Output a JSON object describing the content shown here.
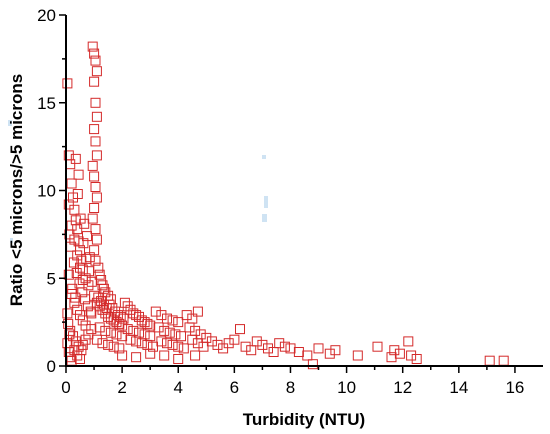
{
  "chart_data": {
    "type": "scatter",
    "title": "",
    "xlabel": "Turbidity (NTU)",
    "ylabel": "Ratio <5 microns/>5 microns",
    "xlim": [
      0,
      17
    ],
    "ylim": [
      0,
      20
    ],
    "x_ticks": [
      0,
      2,
      4,
      6,
      8,
      10,
      12,
      14,
      16
    ],
    "y_ticks": [
      0,
      5,
      10,
      15,
      20
    ],
    "x_tick_labels": [
      "0",
      "2",
      "4",
      "6",
      "8",
      "10",
      "12",
      "14",
      "16"
    ],
    "y_tick_labels": [
      "0",
      "5",
      "10",
      "15",
      "20"
    ],
    "grid": false,
    "marker": "open-square",
    "colors": {
      "marker": "#d42a2a",
      "axis": "#000000"
    },
    "series": [
      {
        "points": [
          [
            0.05,
            16.1
          ],
          [
            0.1,
            12.0
          ],
          [
            0.15,
            11.5
          ],
          [
            0.2,
            10.4
          ],
          [
            0.25,
            9.6
          ],
          [
            0.3,
            8.9
          ],
          [
            0.35,
            8.3
          ],
          [
            0.4,
            7.8
          ],
          [
            0.45,
            7.1
          ],
          [
            0.5,
            6.6
          ],
          [
            0.55,
            6.0
          ],
          [
            0.6,
            5.5
          ],
          [
            0.7,
            5.0
          ],
          [
            0.8,
            4.6
          ],
          [
            0.1,
            9.2
          ],
          [
            0.2,
            8.0
          ],
          [
            0.3,
            7.2
          ],
          [
            0.4,
            6.3
          ],
          [
            0.5,
            5.6
          ],
          [
            0.6,
            4.9
          ],
          [
            0.2,
            4.1
          ],
          [
            0.3,
            3.6
          ],
          [
            0.4,
            3.2
          ],
          [
            0.5,
            2.9
          ],
          [
            0.6,
            2.6
          ],
          [
            0.7,
            2.3
          ],
          [
            0.15,
            2.0
          ],
          [
            0.25,
            1.7
          ],
          [
            0.35,
            1.4
          ],
          [
            0.45,
            1.1
          ],
          [
            0.55,
            0.9
          ],
          [
            0.1,
            5.2
          ],
          [
            0.22,
            4.4
          ],
          [
            0.33,
            3.9
          ],
          [
            0.18,
            6.8
          ],
          [
            0.28,
            5.9
          ],
          [
            0.38,
            5.3
          ],
          [
            0.48,
            4.7
          ],
          [
            0.58,
            4.2
          ],
          [
            0.68,
            3.8
          ],
          [
            0.78,
            3.4
          ],
          [
            0.88,
            3.1
          ],
          [
            0.12,
            7.5
          ],
          [
            0.42,
            9.8
          ],
          [
            0.52,
            8.4
          ],
          [
            0.62,
            7.0
          ],
          [
            0.72,
            6.1
          ],
          [
            0.82,
            5.4
          ],
          [
            0.92,
            4.8
          ],
          [
            0.95,
            18.2
          ],
          [
            1.0,
            17.8
          ],
          [
            1.05,
            17.4
          ],
          [
            1.1,
            16.8
          ],
          [
            1.0,
            16.2
          ],
          [
            1.05,
            15.0
          ],
          [
            1.1,
            14.2
          ],
          [
            1.0,
            13.5
          ],
          [
            1.05,
            12.8
          ],
          [
            1.1,
            12.0
          ],
          [
            0.95,
            11.4
          ],
          [
            1.0,
            10.8
          ],
          [
            1.05,
            10.2
          ],
          [
            1.1,
            9.6
          ],
          [
            1.0,
            9.0
          ],
          [
            0.95,
            8.4
          ],
          [
            1.05,
            7.8
          ],
          [
            1.1,
            7.2
          ],
          [
            1.0,
            6.6
          ],
          [
            1.05,
            6.0
          ],
          [
            1.15,
            5.6
          ],
          [
            1.2,
            5.2
          ],
          [
            1.25,
            4.9
          ],
          [
            1.3,
            4.6
          ],
          [
            1.35,
            4.4
          ],
          [
            1.4,
            4.2
          ],
          [
            1.5,
            4.0
          ],
          [
            1.6,
            3.8
          ],
          [
            1.0,
            4.0
          ],
          [
            1.1,
            3.6
          ],
          [
            1.2,
            3.4
          ],
          [
            0.9,
            3.0
          ],
          [
            1.3,
            3.2
          ],
          [
            1.4,
            3.0
          ],
          [
            1.5,
            2.8
          ],
          [
            1.6,
            2.7
          ],
          [
            1.7,
            2.6
          ],
          [
            1.8,
            2.5
          ],
          [
            1.9,
            2.4
          ],
          [
            2.0,
            2.3
          ],
          [
            1.2,
            2.2
          ],
          [
            1.4,
            2.0
          ],
          [
            1.6,
            1.9
          ],
          [
            1.8,
            1.8
          ],
          [
            2.0,
            1.7
          ],
          [
            1.1,
            1.5
          ],
          [
            1.3,
            1.3
          ],
          [
            1.5,
            1.2
          ],
          [
            1.7,
            1.1
          ],
          [
            1.9,
            1.0
          ],
          [
            2.1,
            3.6
          ],
          [
            2.2,
            3.4
          ],
          [
            2.3,
            3.2
          ],
          [
            2.4,
            3.0
          ],
          [
            2.5,
            2.9
          ],
          [
            2.6,
            2.8
          ],
          [
            2.7,
            2.6
          ],
          [
            2.8,
            2.5
          ],
          [
            2.9,
            2.4
          ],
          [
            3.0,
            2.3
          ],
          [
            2.2,
            2.1
          ],
          [
            2.4,
            2.0
          ],
          [
            2.6,
            1.9
          ],
          [
            2.8,
            1.8
          ],
          [
            3.0,
            1.7
          ],
          [
            2.3,
            1.5
          ],
          [
            2.5,
            1.4
          ],
          [
            2.7,
            1.3
          ],
          [
            2.9,
            1.2
          ],
          [
            3.1,
            1.1
          ],
          [
            3.2,
            3.1
          ],
          [
            3.4,
            2.9
          ],
          [
            3.6,
            2.7
          ],
          [
            3.8,
            2.6
          ],
          [
            4.0,
            2.5
          ],
          [
            3.3,
            2.2
          ],
          [
            3.5,
            2.0
          ],
          [
            3.7,
            1.9
          ],
          [
            3.9,
            1.8
          ],
          [
            4.1,
            1.7
          ],
          [
            3.4,
            1.4
          ],
          [
            3.6,
            1.3
          ],
          [
            3.8,
            1.2
          ],
          [
            4.0,
            1.1
          ],
          [
            4.2,
            1.0
          ],
          [
            4.3,
            2.9
          ],
          [
            4.5,
            2.7
          ],
          [
            4.7,
            3.1
          ],
          [
            4.4,
            2.2
          ],
          [
            4.6,
            2.0
          ],
          [
            4.8,
            1.8
          ],
          [
            4.5,
            1.5
          ],
          [
            4.7,
            1.3
          ],
          [
            4.9,
            1.1
          ],
          [
            2.0,
            0.6
          ],
          [
            2.5,
            0.5
          ],
          [
            3.0,
            0.7
          ],
          [
            3.5,
            0.6
          ],
          [
            4.0,
            0.4
          ],
          [
            4.6,
            0.6
          ],
          [
            5.0,
            1.6
          ],
          [
            5.2,
            1.4
          ],
          [
            5.4,
            1.2
          ],
          [
            5.6,
            1.0
          ],
          [
            5.8,
            1.3
          ],
          [
            6.0,
            1.5
          ],
          [
            6.2,
            2.1
          ],
          [
            6.4,
            1.1
          ],
          [
            6.6,
            0.9
          ],
          [
            6.8,
            1.4
          ],
          [
            7.0,
            1.2
          ],
          [
            7.2,
            1.0
          ],
          [
            7.4,
            0.8
          ],
          [
            7.6,
            1.3
          ],
          [
            7.8,
            1.1
          ],
          [
            8.0,
            1.0
          ],
          [
            8.3,
            0.8
          ],
          [
            8.6,
            0.6
          ],
          [
            8.8,
            0.1
          ],
          [
            9.0,
            1.0
          ],
          [
            9.4,
            0.7
          ],
          [
            9.6,
            0.9
          ],
          [
            10.4,
            0.6
          ],
          [
            11.1,
            1.1
          ],
          [
            11.6,
            0.5
          ],
          [
            11.7,
            0.9
          ],
          [
            11.9,
            0.7
          ],
          [
            12.2,
            1.4
          ],
          [
            12.3,
            0.6
          ],
          [
            12.5,
            0.4
          ],
          [
            15.1,
            0.3
          ],
          [
            15.6,
            0.3
          ],
          [
            0.05,
            3.0
          ],
          [
            0.08,
            2.4
          ],
          [
            0.12,
            1.8
          ],
          [
            0.05,
            1.3
          ],
          [
            0.1,
            0.8
          ],
          [
            0.15,
            0.5
          ],
          [
            0.2,
            0.3
          ],
          [
            0.3,
            0.9
          ],
          [
            0.4,
            0.6
          ],
          [
            0.5,
            0.4
          ],
          [
            0.6,
            1.2
          ],
          [
            0.7,
            1.5
          ],
          [
            0.8,
            1.8
          ],
          [
            0.9,
            2.1
          ],
          [
            0.85,
            6.2
          ],
          [
            0.75,
            7.4
          ],
          [
            0.65,
            8.1
          ],
          [
            0.45,
            10.9
          ],
          [
            0.35,
            11.8
          ],
          [
            1.15,
            3.9
          ],
          [
            1.25,
            3.7
          ],
          [
            1.35,
            3.5
          ],
          [
            1.45,
            3.3
          ],
          [
            1.55,
            3.5
          ],
          [
            1.65,
            3.3
          ],
          [
            1.75,
            3.1
          ],
          [
            1.85,
            2.9
          ],
          [
            1.95,
            2.8
          ],
          [
            2.05,
            2.7
          ]
        ]
      }
    ]
  }
}
